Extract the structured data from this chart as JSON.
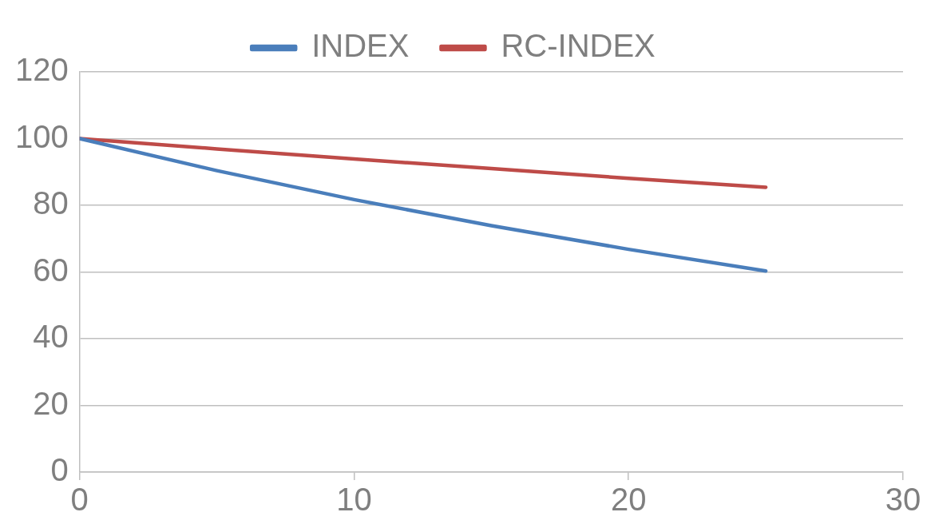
{
  "chart_data": {
    "type": "line",
    "x": [
      0,
      5,
      10,
      15,
      20,
      25
    ],
    "series": [
      {
        "name": "INDEX",
        "color": "#4a7ebb",
        "values": [
          100,
          90.4,
          81.7,
          73.9,
          66.8,
          60.3
        ]
      },
      {
        "name": "RC-INDEX",
        "color": "#be4b48",
        "values": [
          100,
          96.9,
          93.9,
          91.0,
          88.1,
          85.4
        ]
      }
    ],
    "xlim": [
      0,
      30
    ],
    "xticks": [
      0,
      10,
      20,
      30
    ],
    "ylim": [
      0,
      120
    ],
    "yticks": [
      0,
      20,
      40,
      60,
      80,
      100,
      120
    ],
    "grid": "y",
    "legend": "top",
    "marker": "none",
    "line_style": "solid"
  }
}
